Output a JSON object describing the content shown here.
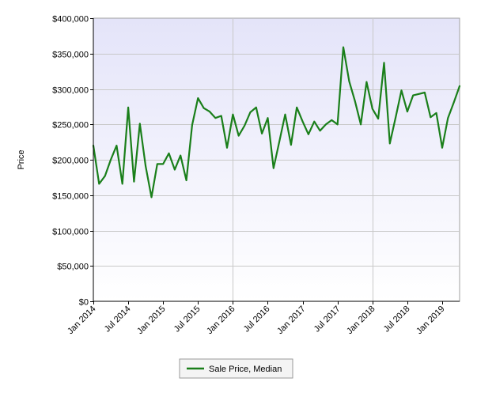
{
  "chart_data": {
    "type": "line",
    "title": "",
    "xlabel": "",
    "ylabel": "Price",
    "ylim": [
      0,
      400000
    ],
    "y_ticks": [
      0,
      50000,
      100000,
      150000,
      200000,
      250000,
      300000,
      350000,
      400000
    ],
    "y_tick_labels": [
      "$0",
      "$50,000",
      "$100,000",
      "$150,000",
      "$200,000",
      "$250,000",
      "$300,000",
      "$350,000",
      "$400,000"
    ],
    "x_tick_labels": [
      "Jan 2014",
      "Jul 2014",
      "Jan 2015",
      "Jul 2015",
      "Jan 2016",
      "Jul 2016",
      "Jan 2017",
      "Jul 2017",
      "Jan 2018",
      "Jul 2018",
      "Jan 2019"
    ],
    "x_tick_months": [
      0,
      6,
      12,
      18,
      24,
      30,
      36,
      42,
      48,
      54,
      60
    ],
    "x_range_months": [
      0,
      63
    ],
    "grid": true,
    "legend_position": "bottom",
    "series": [
      {
        "name": "Sale Price, Median",
        "color": "#1a7f1a",
        "month_index": [
          0,
          1,
          2,
          3,
          4,
          5,
          6,
          7,
          8,
          9,
          10,
          11,
          12,
          13,
          14,
          15,
          16,
          17,
          18,
          19,
          20,
          21,
          22,
          23,
          24,
          25,
          26,
          27,
          28,
          29,
          30,
          31,
          32,
          33,
          34,
          35,
          36,
          37,
          38,
          39,
          40,
          41,
          42,
          43,
          44,
          45,
          46,
          47,
          48,
          49,
          50,
          51,
          52,
          53,
          54,
          55,
          56,
          57,
          58,
          59,
          60,
          61,
          62,
          63
        ],
        "values": [
          220000,
          166000,
          177000,
          200000,
          220000,
          166000,
          274000,
          169000,
          251000,
          191000,
          147000,
          194000,
          194000,
          209000,
          186000,
          206000,
          171000,
          249000,
          287000,
          273000,
          268000,
          259000,
          262000,
          217000,
          264000,
          234000,
          248000,
          267000,
          274000,
          237000,
          259000,
          188000,
          226000,
          264000,
          221000,
          274000,
          254000,
          236000,
          254000,
          241000,
          250000,
          256000,
          250000,
          359000,
          311000,
          283000,
          250000,
          310000,
          272000,
          258000,
          337000,
          223000,
          260000,
          298000,
          268000,
          291000,
          293000,
          295000,
          260000,
          266000,
          217000,
          259000,
          281000,
          304000
        ]
      }
    ]
  }
}
